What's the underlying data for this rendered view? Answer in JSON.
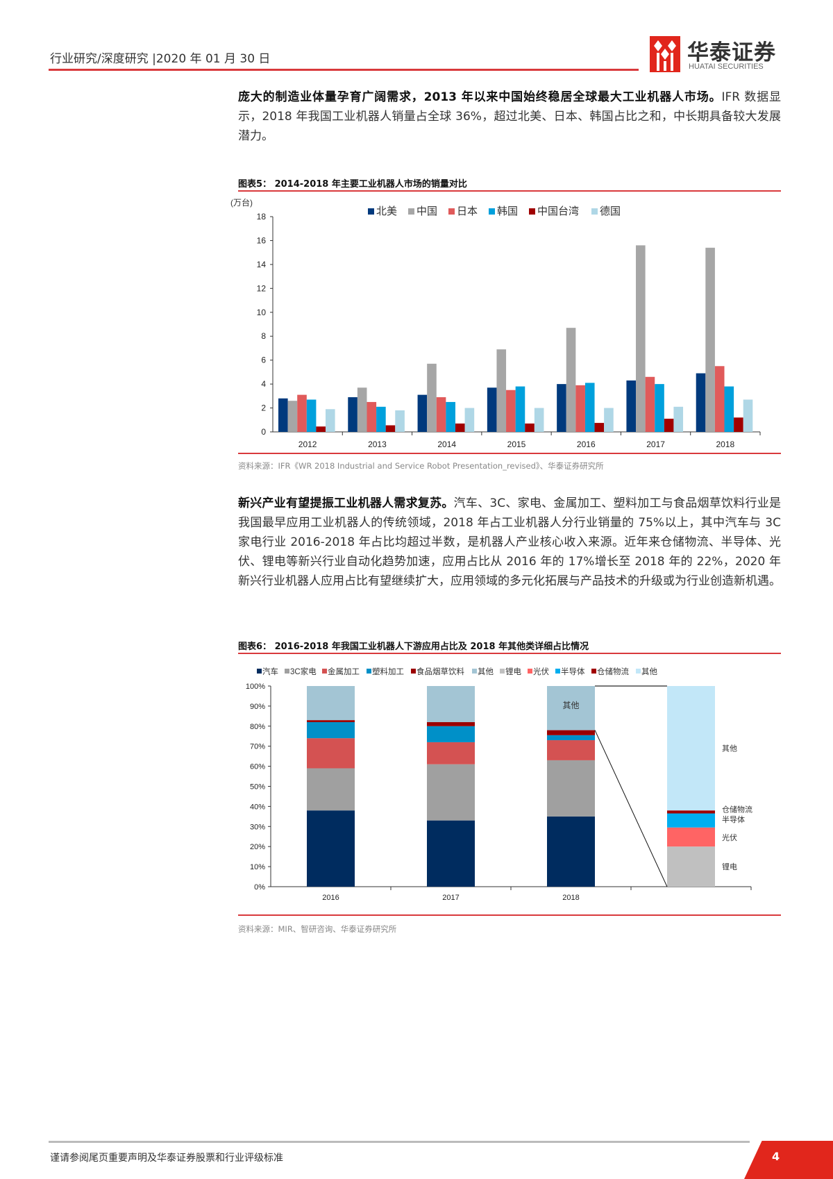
{
  "header": {
    "section": "行业研究/深度研究",
    "date": "|2020 年 01 月 30 日",
    "logo_cn": "华泰证券",
    "logo_en": "HUATAI SECURITIES",
    "brand_color": "#e1261c"
  },
  "intro": {
    "bold": "庞大的制造业体量孕育广阔需求，2013 年以来中国始终稳居全球最大工业机器人市场。",
    "text": "IFR 数据显示，2018 年我国工业机器人销量占全球 36%，超过北美、日本、韩国占比之和，中长期具备较大发展潜力。"
  },
  "figure5": {
    "title": "图表5：  2014-2018 年主要工业机器人市场的销量对比",
    "source": "资料来源：IFR《WR 2018 Industrial and Service Robot Presentation_revised》、华泰证券研究所"
  },
  "paragraph2": {
    "bold": "新兴产业有望提振工业机器人需求复苏。",
    "text": "汽车、3C、家电、金属加工、塑料加工与食品烟草饮料行业是我国最早应用工业机器人的传统领域，2018 年占工业机器人分行业销量的 75%以上，其中汽车与 3C 家电行业 2016-2018 年占比均超过半数，是机器人产业核心收入来源。近年来仓储物流、半导体、光伏、锂电等新兴行业自动化趋势加速，应用占比从 2016 年的 17%增长至 2018 年的 22%，2020 年新兴行业机器人应用占比有望继续扩大，应用领域的多元化拓展与产品技术的升级或为行业创造新机遇。"
  },
  "figure6": {
    "title": "图表6：  2016-2018 年我国工业机器人下游应用占比及 2018 年其他类详细占比情况",
    "source": "资料来源：MIR、智研咨询、华泰证券研究所"
  },
  "footer": {
    "disclaimer": "谨请参阅尾页重要声明及华泰证券股票和行业评级标准",
    "page": "4"
  },
  "chart_data": [
    {
      "type": "bar",
      "ylabel": "(万台)",
      "ylim": [
        0,
        18
      ],
      "yticks": [
        "0",
        "2",
        "4",
        "6",
        "8",
        "10",
        "12",
        "14",
        "16",
        "18"
      ],
      "grid": false,
      "legend": "top",
      "categories": [
        "2012",
        "2013",
        "2014",
        "2015",
        "2016",
        "2017",
        "2018"
      ],
      "series": [
        {
          "name": "北美",
          "color": "#003a7d",
          "values": [
            2.8,
            2.9,
            3.1,
            3.7,
            4.0,
            4.3,
            4.9
          ]
        },
        {
          "name": "中国",
          "color": "#a6a6a6",
          "values": [
            2.6,
            3.7,
            5.7,
            6.9,
            8.7,
            15.6,
            15.4
          ]
        },
        {
          "name": "日本",
          "color": "#e05a5a",
          "values": [
            3.1,
            2.5,
            2.9,
            3.5,
            3.9,
            4.6,
            5.5
          ]
        },
        {
          "name": "韩国",
          "color": "#00a0dc",
          "values": [
            2.7,
            2.1,
            2.5,
            3.8,
            4.1,
            4.0,
            3.8
          ]
        },
        {
          "name": "中国台湾",
          "color": "#a00000",
          "values": [
            0.45,
            0.55,
            0.7,
            0.7,
            0.75,
            1.1,
            1.2
          ]
        },
        {
          "name": "德国",
          "color": "#afd7e6",
          "values": [
            1.9,
            1.8,
            2.0,
            2.0,
            2.0,
            2.1,
            2.7
          ]
        }
      ]
    },
    {
      "type": "stacked-bar",
      "ylim": [
        0,
        100
      ],
      "yticks": [
        "0%",
        "10%",
        "20%",
        "30%",
        "40%",
        "50%",
        "60%",
        "70%",
        "80%",
        "90%",
        "100%"
      ],
      "grid": false,
      "legend": "top",
      "categories": [
        "2016",
        "2017",
        "2018",
        ""
      ],
      "series": [
        {
          "name": "汽车",
          "color": "#002c5f",
          "values": [
            38,
            33,
            35,
            null
          ]
        },
        {
          "name": "3C家电",
          "color": "#a0a0a0",
          "values": [
            21,
            28,
            28,
            null
          ]
        },
        {
          "name": "金属加工",
          "color": "#d45252",
          "values": [
            15,
            11,
            10,
            null
          ]
        },
        {
          "name": "塑料加工",
          "color": "#0090c8",
          "values": [
            8,
            8,
            2.5,
            null
          ]
        },
        {
          "name": "食品烟草饮料",
          "color": "#9b0000",
          "values": [
            1,
            2,
            2.5,
            null
          ]
        },
        {
          "name": "其他",
          "color": "#a3c5d4",
          "values": [
            17,
            18,
            22,
            null
          ]
        },
        {
          "name": "锂电",
          "color": "#c0c0c0",
          "values": [
            null,
            null,
            null,
            20
          ]
        },
        {
          "name": "光伏",
          "color": "#ff6464",
          "values": [
            null,
            null,
            null,
            9.5
          ]
        },
        {
          "name": "半导体",
          "color": "#00aeef",
          "values": [
            null,
            null,
            null,
            7
          ]
        },
        {
          "name": "仓储物流",
          "color": "#a00000",
          "values": [
            null,
            null,
            null,
            1.5
          ]
        },
        {
          "name": "其他",
          "color": "#c2e7f8",
          "values": [
            null,
            null,
            null,
            62
          ]
        }
      ],
      "annotations": {
        "bar_2018_other": "其他",
        "breakdown": [
          "其他",
          "仓储物流",
          "半导体",
          "光伏",
          "锂电"
        ]
      }
    }
  ]
}
